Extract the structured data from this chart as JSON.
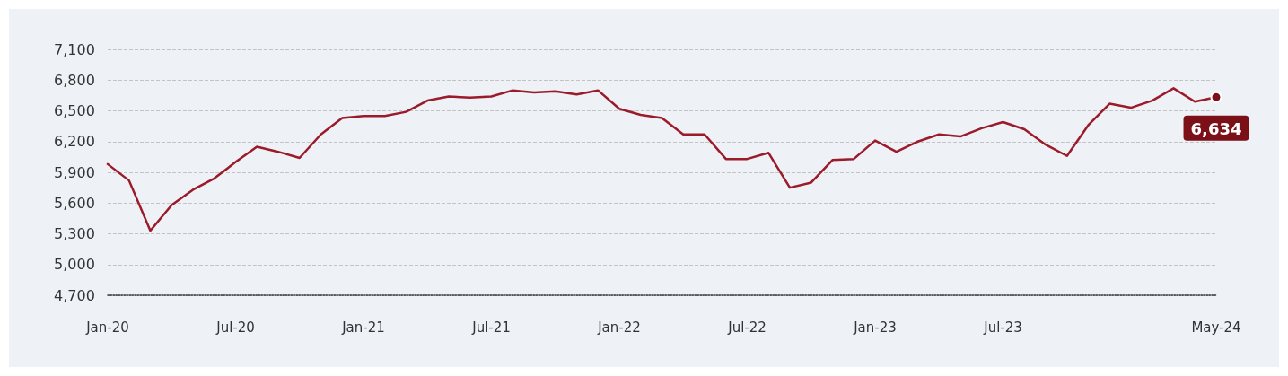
{
  "chart_data": {
    "type": "line",
    "categories": [
      "Jan-20",
      null,
      null,
      null,
      null,
      null,
      "Jul-20",
      null,
      null,
      null,
      null,
      null,
      "Jan-21",
      null,
      null,
      null,
      null,
      null,
      "Jul-21",
      null,
      null,
      null,
      null,
      null,
      "Jan-22",
      null,
      null,
      null,
      null,
      null,
      "Jul-22",
      null,
      null,
      null,
      null,
      null,
      "Jan-23",
      null,
      null,
      null,
      null,
      null,
      "Jul-23",
      null,
      null,
      null,
      null,
      null,
      null,
      null,
      null,
      null,
      "May-24"
    ],
    "series": [
      {
        "color": "#9b1b2a",
        "values": [
          5980,
          5820,
          5330,
          5580,
          5730,
          5840,
          6000,
          6150,
          6100,
          6040,
          6270,
          6430,
          6450,
          6450,
          6490,
          6600,
          6640,
          6630,
          6640,
          6700,
          6680,
          6690,
          6660,
          6700,
          6520,
          6460,
          6430,
          6270,
          6270,
          6030,
          6030,
          6090,
          5750,
          5800,
          6020,
          6030,
          6210,
          6100,
          6200,
          6270,
          6250,
          6330,
          6390,
          6320,
          6170,
          6060,
          6360,
          6570,
          6530,
          6600,
          6720,
          6590,
          6634
        ],
        "value_labels": [
          null,
          null,
          null,
          null,
          null,
          null,
          null,
          null,
          null,
          null,
          null,
          null,
          null,
          null,
          null,
          null,
          null,
          null,
          null,
          null,
          null,
          null,
          null,
          null,
          null,
          null,
          null,
          null,
          null,
          null,
          null,
          null,
          null,
          null,
          null,
          null,
          null,
          null,
          null,
          null,
          null,
          null,
          null,
          null,
          null,
          null,
          null,
          null,
          null,
          null,
          null,
          null,
          "6,634"
        ]
      }
    ],
    "ylim": [
      4700,
      7100
    ],
    "yticks": [
      {
        "value": 4700,
        "label": "4,700"
      },
      {
        "value": 5000,
        "label": "5,000"
      },
      {
        "value": 5300,
        "label": "5,300"
      },
      {
        "value": 5600,
        "label": "5,600"
      },
      {
        "value": 5900,
        "label": "5,900"
      },
      {
        "value": 6200,
        "label": "6,200"
      },
      {
        "value": 6500,
        "label": "6,500"
      },
      {
        "value": 6800,
        "label": "6,800"
      },
      {
        "value": 7100,
        "label": "7,100"
      }
    ],
    "grid": "y",
    "marker": "none",
    "line_style": "solid"
  }
}
